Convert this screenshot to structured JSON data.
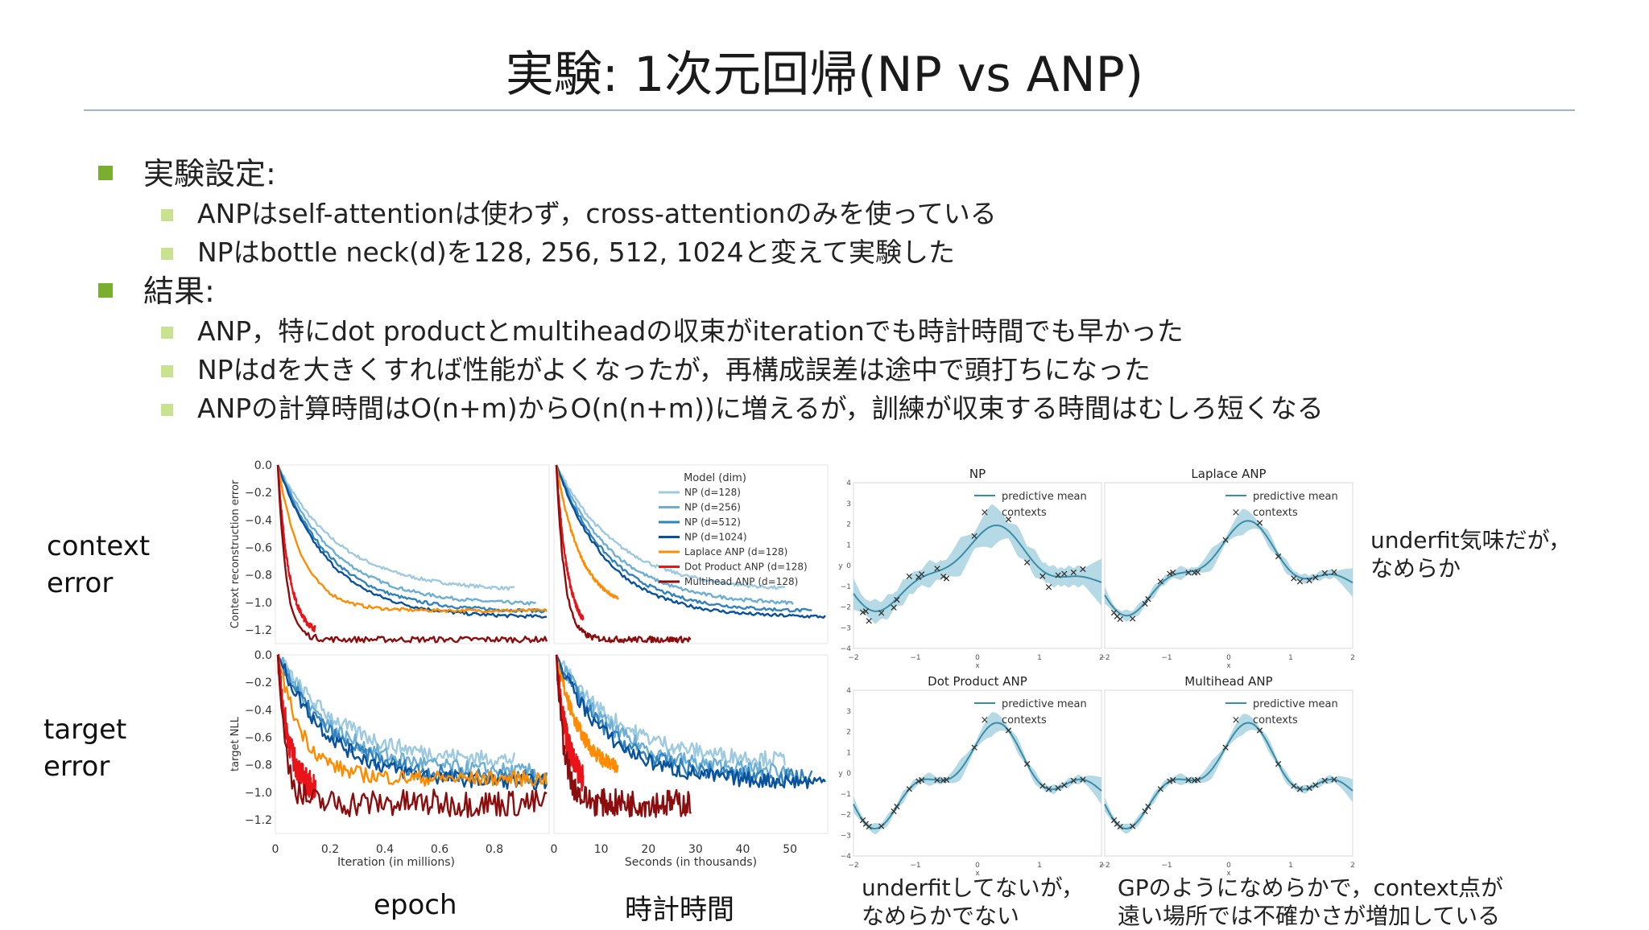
{
  "slide": {
    "title": "実験: 1次元回帰(NP vs ANP)",
    "bullets": [
      {
        "level": 1,
        "text": "実験設定:"
      },
      {
        "level": 2,
        "text": "ANPはself-attentionは使わず，cross-attentionのみを使っている"
      },
      {
        "level": 2,
        "text": "NPはbottle neck(d)を128, 256, 512, 1024と変えて実験した"
      },
      {
        "level": 1,
        "text": "結果:"
      },
      {
        "level": 2,
        "text": "ANP，特にdot productとmultiheadの収束がiterationでも時計時間でも早かった"
      },
      {
        "level": 2,
        "text": "NPはdを大きくすれば性能がよくなったが，再構成誤差は途中で頭打ちになった"
      },
      {
        "level": 2,
        "text": "ANPの計算時間はO(n+m)からO(n(n+m))に増えるが，訓練が収束する時間はむしろ短くなる"
      }
    ],
    "row_labels": {
      "context": [
        "context",
        "error"
      ],
      "target": [
        "target",
        "error"
      ]
    },
    "col_labels": {
      "epoch": "epoch",
      "clock": "時計時間"
    },
    "notes": {
      "right": [
        "underfit気味だが，",
        "なめらか"
      ],
      "bottom_left": [
        "underfitしてないが，",
        "なめらかでない"
      ],
      "bottom_right": [
        "GPのようになめらかで，context点が",
        "遠い場所では不確かさが増加している"
      ]
    },
    "colors": {
      "bullet1": "#7aae2f",
      "bullet2": "#c8e28f",
      "rule": "#9fb4c7"
    }
  },
  "chart_data": [
    {
      "type": "line",
      "id": "curves",
      "ylabel_top": "Context reconstruction error",
      "ylabel_bottom": "target NLL",
      "xlabel_left": "Iteration (in millions)",
      "xlabel_right": "Seconds (in thousands)",
      "yticks": [
        "0.0",
        "−0.2",
        "−0.4",
        "−0.6",
        "−0.8",
        "−1.0",
        "−1.2"
      ],
      "xticks_left": [
        "0",
        "0.2",
        "0.4",
        "0.6",
        "0.8"
      ],
      "xticks_right": [
        "0",
        "10",
        "20",
        "30",
        "40",
        "50"
      ],
      "legend_title": "Model (dim)",
      "ylim": [
        -1.3,
        0.0
      ],
      "series": [
        {
          "name": "NP (d=128)",
          "color": "#9ecae1",
          "ctx": -0.92,
          "tgt": -0.78,
          "sp": 0.3,
          "wx": 0.88,
          "ws": 0.85
        },
        {
          "name": "NP (d=256)",
          "color": "#6baed6",
          "ctx": -1.02,
          "tgt": -0.86,
          "sp": 0.28,
          "wx": 0.96,
          "ws": 0.88
        },
        {
          "name": "NP (d=512)",
          "color": "#3182bd",
          "ctx": -1.07,
          "tgt": -0.9,
          "sp": 0.26,
          "wx": 1.0,
          "ws": 0.95
        },
        {
          "name": "NP (d=1024)",
          "color": "#08519c",
          "ctx": -1.11,
          "tgt": -0.93,
          "sp": 0.25,
          "wx": 1.0,
          "ws": 1.0
        },
        {
          "name": "Laplace ANP (d=128)",
          "color": "#ff8c00",
          "ctx": -1.06,
          "tgt": -0.9,
          "sp": 0.12,
          "wx": 1.0,
          "ws": 0.23
        },
        {
          "name": "Dot Product ANP (d=128)",
          "color": "#e8141a",
          "ctx": -1.24,
          "tgt": -1.0,
          "sp": 0.055,
          "wx": 0.14,
          "ws": 0.1
        },
        {
          "name": "Multihead ANP (d=128)",
          "color": "#8b0d0d",
          "ctx": -1.27,
          "tgt": -1.08,
          "sp": 0.04,
          "wx": 1.0,
          "ws": 0.5
        }
      ]
    },
    {
      "type": "line",
      "id": "regression",
      "panels": [
        {
          "title": "NP",
          "band": 0.8,
          "fit": 0.55
        },
        {
          "title": "Laplace ANP",
          "band": 0.6,
          "fit": 0.75
        },
        {
          "title": "Dot Product ANP",
          "band": 0.55,
          "fit": 1.0
        },
        {
          "title": "Multihead ANP",
          "band": 0.45,
          "fit": 1.0
        }
      ],
      "legend": [
        "predictive mean",
        "contexts"
      ],
      "xlabel": "x",
      "ylabel": "y",
      "xticks": [
        "−2",
        "−1",
        "0",
        "1",
        "2"
      ],
      "yticks": [
        "4",
        "3",
        "2",
        "1",
        "0",
        "−1",
        "−2",
        "−3",
        "−4"
      ],
      "xlim": [
        -2.0,
        2.0
      ],
      "ylim": [
        -4,
        4
      ],
      "contexts_x": [
        -1.85,
        -1.8,
        -1.75,
        -1.55,
        -1.35,
        -1.1,
        -0.95,
        -0.9,
        -0.55,
        -0.5,
        -0.05,
        0.5,
        0.8,
        1.05,
        1.15,
        1.3,
        1.4,
        1.55,
        1.7,
        -1.3,
        -0.65
      ],
      "band_color": "#a8d4e0",
      "mean_color": "#3a8da8"
    }
  ]
}
